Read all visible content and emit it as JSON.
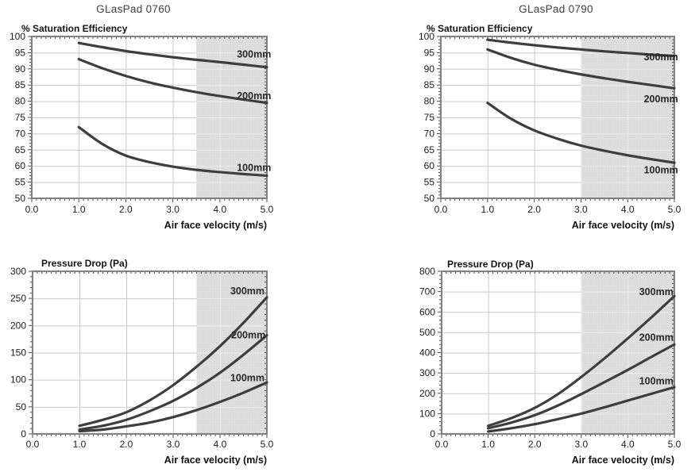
{
  "page": {
    "background": "#ffffff"
  },
  "columns": [
    {
      "title": "GLasPad 0760"
    },
    {
      "title": "GLasPad 0790"
    }
  ],
  "colors": {
    "curve": "#3e3e3e",
    "grid": "#c9c9c9",
    "grid_on_shade": "#ececec",
    "shade": "#dcdcdc",
    "shade_dot": "#d2d2d2",
    "border": "#808080",
    "tick": "#4a4a4a",
    "tick_label": "#1c1c1c",
    "label_text": "#111111",
    "series_label": "#262626"
  },
  "chart_data": [
    {
      "id": "saturation-efficiency-0760",
      "type": "line",
      "product": "GLasPad 0760",
      "title": "% Saturation Efficiency",
      "xlabel": "Air face velocity (m/s)",
      "xlim": [
        0,
        5
      ],
      "ylim": [
        50,
        100
      ],
      "xticks": [
        0,
        1,
        2,
        3,
        4,
        5
      ],
      "xtick_labels": [
        "0.0",
        "1.0",
        "2.0",
        "3.0",
        "4.0",
        "5.0"
      ],
      "yticks": [
        50,
        55,
        60,
        65,
        70,
        75,
        80,
        85,
        90,
        95,
        100
      ],
      "y_minor_step": 1,
      "x_minor_step": 0.1,
      "grid": true,
      "legend_position": "inline-right",
      "shaded_region": {
        "from": 3.5,
        "to": 5.0
      },
      "x": [
        1,
        1.5,
        2,
        2.5,
        3,
        3.5,
        4,
        4.5,
        5
      ],
      "series": [
        {
          "name": "300mm",
          "values": [
            98,
            96.7,
            95.5,
            94.5,
            93.6,
            92.8,
            92.1,
            91.3,
            90.5
          ],
          "label": {
            "x": 5.09,
            "y": 94.6
          }
        },
        {
          "name": "200mm",
          "values": [
            93,
            90.2,
            87.8,
            85.8,
            84.2,
            82.8,
            81.6,
            80.5,
            79.5
          ],
          "label": {
            "x": 5.09,
            "y": 81.8
          }
        },
        {
          "name": "100mm",
          "values": [
            72,
            66.8,
            63.2,
            61.2,
            59.8,
            58.8,
            58.1,
            57.5,
            57
          ],
          "label": {
            "x": 5.09,
            "y": 59.5
          }
        }
      ]
    },
    {
      "id": "saturation-efficiency-0790",
      "type": "line",
      "product": "GLasPad 0790",
      "title": "% Saturation Efficiency",
      "xlabel": "Air face velocity (m/s)",
      "xlim": [
        0,
        5
      ],
      "ylim": [
        50,
        100
      ],
      "xticks": [
        0,
        1,
        2,
        3,
        4,
        5
      ],
      "xtick_labels": [
        "0.0",
        "1.0",
        "2.0",
        "3.0",
        "4.0",
        "5.0"
      ],
      "yticks": [
        50,
        55,
        60,
        65,
        70,
        75,
        80,
        85,
        90,
        95,
        100
      ],
      "y_minor_step": 1,
      "x_minor_step": 0.1,
      "grid": true,
      "legend_position": "inline-right",
      "shaded_region": {
        "from": 3.0,
        "to": 5.0
      },
      "x": [
        1,
        1.5,
        2,
        2.5,
        3,
        3.5,
        4,
        4.5,
        5
      ],
      "series": [
        {
          "name": "300mm",
          "values": [
            99,
            98.1,
            97.3,
            96.6,
            96,
            95.4,
            94.9,
            94.4,
            94
          ],
          "label": {
            "x": 5.08,
            "y": 93.8
          }
        },
        {
          "name": "200mm",
          "values": [
            96,
            93.4,
            91.3,
            89.7,
            88.3,
            87.1,
            86,
            85,
            84
          ],
          "label": {
            "x": 5.08,
            "y": 80.8
          }
        },
        {
          "name": "100mm",
          "values": [
            79.5,
            74.6,
            71,
            68.4,
            66.3,
            64.7,
            63.3,
            62.1,
            61
          ],
          "label": {
            "x": 5.08,
            "y": 58.8
          }
        }
      ]
    },
    {
      "id": "pressure-drop-0760",
      "type": "line",
      "product": "GLasPad 0760",
      "title": "Pressure Drop (Pa)",
      "xlabel": "Air face velocity (m/s)",
      "xlim": [
        0,
        5
      ],
      "ylim": [
        0,
        300
      ],
      "xticks": [
        0,
        1,
        2,
        3,
        4,
        5
      ],
      "xtick_labels": [
        "0.0",
        "1.0",
        "2.0",
        "3.0",
        "4.0",
        "5.0"
      ],
      "yticks": [
        0,
        50,
        100,
        150,
        200,
        250,
        300
      ],
      "y_minor_step": 10,
      "x_minor_step": 0.1,
      "grid": true,
      "legend_position": "inline-right",
      "shaded_region": {
        "from": 3.5,
        "to": 5.0
      },
      "x": [
        1,
        1.5,
        2,
        2.5,
        3,
        3.5,
        4,
        4.5,
        5
      ],
      "series": [
        {
          "name": "300mm",
          "values": [
            15,
            26,
            40,
            62,
            90,
            124,
            162,
            205,
            252
          ],
          "label": {
            "x": 4.95,
            "y": 264
          }
        },
        {
          "name": "200mm",
          "values": [
            8,
            15,
            26,
            42,
            61,
            85,
            113,
            146,
            182
          ],
          "label": {
            "x": 4.97,
            "y": 183
          }
        },
        {
          "name": "100mm",
          "values": [
            5,
            8,
            14,
            21,
            31,
            44,
            59,
            76,
            95
          ],
          "label": {
            "x": 4.95,
            "y": 104
          }
        }
      ]
    },
    {
      "id": "pressure-drop-0790",
      "type": "line",
      "product": "GLasPad 0790",
      "title": "Pressure Drop (Pa)",
      "xlabel": "Air face velocity (m/s)",
      "xlim": [
        0,
        5
      ],
      "ylim": [
        0,
        800
      ],
      "xticks": [
        0,
        1,
        2,
        3,
        4,
        5
      ],
      "xtick_labels": [
        "0.0",
        "1.0",
        "2.0",
        "3.0",
        "4.0",
        "5.0"
      ],
      "yticks": [
        0,
        100,
        200,
        300,
        400,
        500,
        600,
        700,
        800
      ],
      "y_minor_step": 20,
      "x_minor_step": 0.1,
      "grid": true,
      "legend_position": "inline-right",
      "shaded_region": {
        "from": 3.0,
        "to": 5.0
      },
      "x": [
        1,
        1.5,
        2,
        2.5,
        3,
        3.5,
        4,
        4.5,
        5
      ],
      "series": [
        {
          "name": "300mm",
          "values": [
            40,
            78,
            128,
            196,
            280,
            372,
            470,
            572,
            678
          ],
          "label": {
            "x": 4.98,
            "y": 700
          }
        },
        {
          "name": "200mm",
          "values": [
            28,
            56,
            92,
            140,
            196,
            255,
            315,
            378,
            440
          ],
          "label": {
            "x": 4.98,
            "y": 477
          }
        },
        {
          "name": "100mm",
          "values": [
            12,
            28,
            48,
            73,
            100,
            131,
            164,
            197,
            230
          ],
          "label": {
            "x": 4.98,
            "y": 261
          }
        }
      ]
    }
  ]
}
